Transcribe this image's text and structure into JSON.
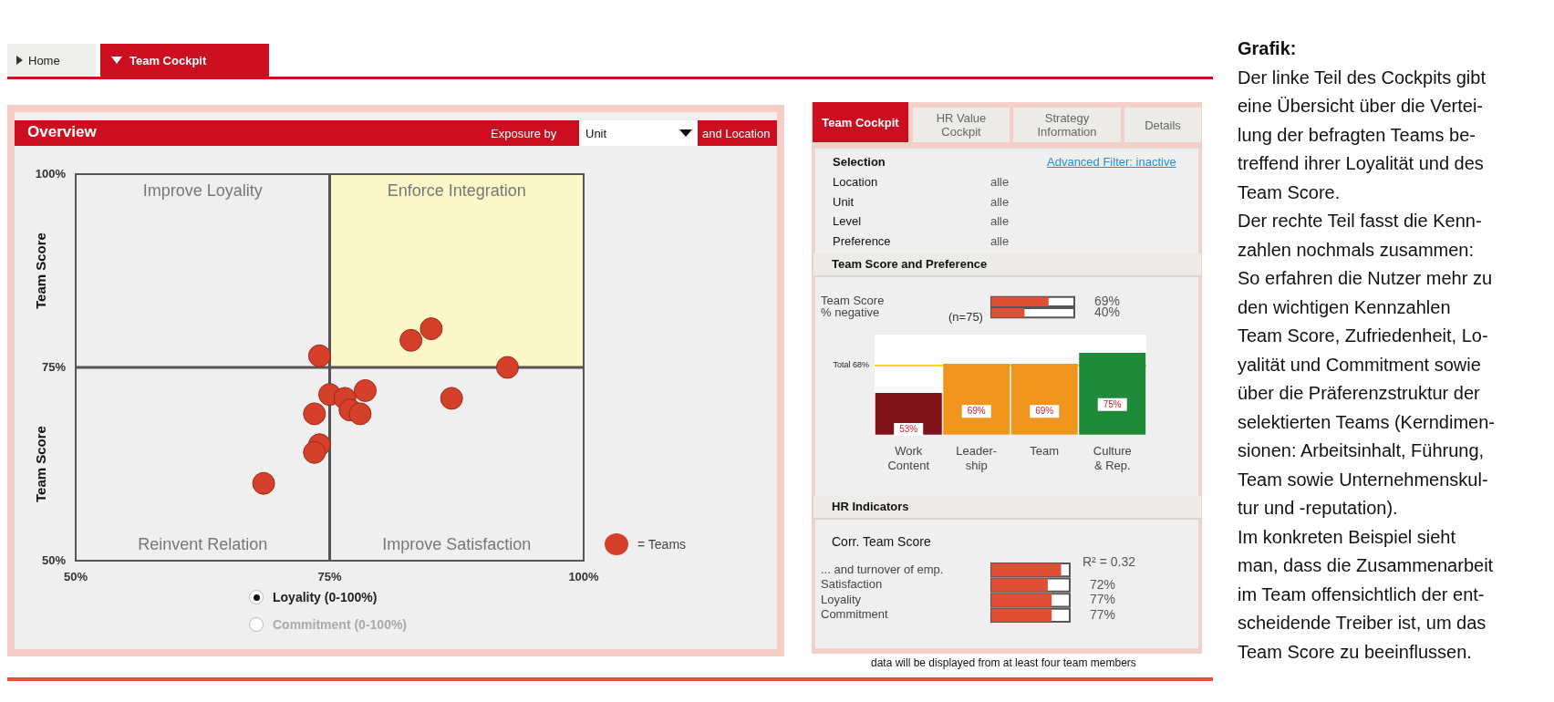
{
  "chart_data": [
    {
      "type": "scatter",
      "title": "Overview",
      "ylabel": "Team Score",
      "legend": "right",
      "marker": "circle",
      "series": [
        {
          "name": "= Teams",
          "color": "#d5402a",
          "x": [
            74,
            83,
            85,
            92.5,
            75,
            76.5,
            78.5,
            77,
            78,
            73.5,
            74,
            73.5,
            87,
            68.5
          ],
          "values": [
            76.5,
            78.5,
            80,
            75,
            71.5,
            71,
            72,
            69.5,
            69,
            69,
            65,
            64,
            71,
            60
          ]
        }
      ],
      "xlim": [
        50,
        100
      ],
      "xticks": [
        {
          "value": 50,
          "label": "50%"
        },
        {
          "value": 75,
          "label": "75%"
        },
        {
          "value": 100,
          "label": "100%"
        }
      ],
      "ylim": [
        50,
        100
      ],
      "yticks": [
        {
          "value": 50,
          "label": "50%"
        },
        {
          "value": 75,
          "label": "75%"
        },
        {
          "value": 100,
          "label": "100%"
        }
      ],
      "ref_lines": [
        {
          "axis": "x",
          "value": 75,
          "color": "#555555"
        },
        {
          "axis": "y",
          "value": 75,
          "color": "#555555"
        }
      ],
      "bands": [
        {
          "axis": "x",
          "from": 75,
          "to": 100,
          "color": "#fbf7c8"
        }
      ],
      "annotations": [
        "Improve Loyality",
        "Enforce Integration",
        "Reinvent Relation",
        "Improve Satisfaction",
        "Exposure by",
        "Unit",
        "and Location",
        "Loyality (0-100%)",
        "Commitment (0-100%)"
      ]
    },
    {
      "type": "bar",
      "orientation": "horizontal",
      "title": "Team Score and Preference",
      "categories": [
        "Team Score",
        "% negative"
      ],
      "values": [
        69,
        40
      ],
      "color": "#e04e36",
      "xlim": [
        0,
        100
      ],
      "tick_labels": "y",
      "value_labels": [
        "69%",
        "40%"
      ],
      "annotations": [
        "(n=75)"
      ]
    },
    {
      "type": "bar",
      "categories": [
        "Work Content",
        "Leader- ship",
        "Team",
        "Culture & Rep."
      ],
      "values": [
        53,
        69,
        69,
        75
      ],
      "colors": [
        "#7f1119",
        "#f0961e",
        "#f0961e",
        "#1f8a3a"
      ],
      "ylim": [
        30,
        85
      ],
      "tick_labels": "x",
      "value_labels": [
        "53%",
        "69%",
        "69%",
        "75%"
      ],
      "ref_lines": [
        {
          "axis": "y",
          "value": 68,
          "label": "Total 68%",
          "color": "#f5d327"
        }
      ]
    },
    {
      "type": "bar",
      "orientation": "horizontal",
      "title": "HR Indicators",
      "subtitle": "Corr. Team Score",
      "categories": [
        "... and turnover of emp.",
        "Satisfaction",
        "Loyality",
        "Commitment"
      ],
      "values": [
        89,
        72,
        77,
        77
      ],
      "color": "#e04e36",
      "xlim": [
        0,
        100
      ],
      "tick_labels": "y",
      "value_labels": [
        null,
        "72%",
        "77%",
        "77%"
      ],
      "annotations": [
        "R² = 0.32"
      ]
    },
    {
      "type": "other",
      "annotations": [
        "Home",
        "Team Cockpit",
        "Team Cockpit",
        "HR Value Cockpit",
        "Strategy Information",
        "Details",
        "Selection",
        "Advanced Filter: inactive",
        "Location",
        "alle",
        "Unit",
        "alle",
        "Level",
        "alle",
        "Preference",
        "alle",
        "data will be displayed from at least four team members"
      ]
    },
    {
      "type": "other",
      "title": "Grafik:",
      "annotations": [
        "Der linke Teil des Cockpits gibt",
        "eine Übersicht über die Vertei-",
        "lung der befragten Teams be-",
        "treffend ihrer Loyalität und des",
        "Team Score.",
        "Der rechte Teil fasst die Kenn-",
        "zahlen nochmals zusammen:",
        "So erfahren die Nutzer mehr zu",
        "den wichtigen Kennzahlen",
        "Team Score, Zufriedenheit, Lo-",
        "yalität und Commitment sowie",
        "über die Präferenzstruktur der",
        "selektierten Teams (Kerndimen-",
        "sionen: Arbeitsinhalt, Führung,",
        "Team sowie Unternehmenskul-",
        "tur und -reputation).",
        "Im konkreten Beispiel sieht",
        "man, dass die Zusammenarbeit",
        "im Team offensichtlich der ent-",
        "scheidende Treiber ist, um das",
        "Team Score zu beeinflussen."
      ]
    }
  ]
}
